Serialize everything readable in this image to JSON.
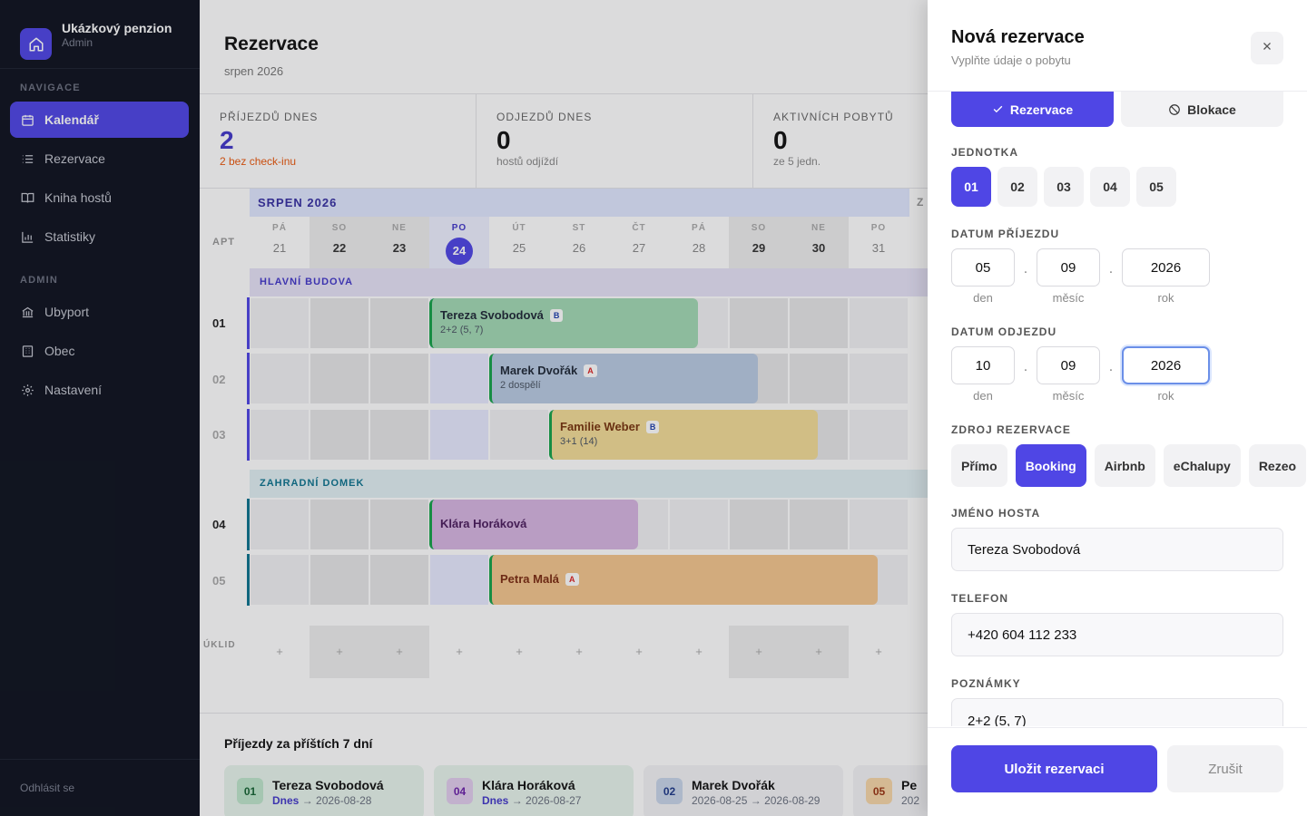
{
  "sidebar": {
    "brand_name": "Ukázkový penzion",
    "brand_role": "Admin",
    "nav_head": "NAVIGACE",
    "admin_head": "ADMIN",
    "items": [
      {
        "label": "Kalendář",
        "icon": "calendar-icon"
      },
      {
        "label": "Rezervace",
        "icon": "list-icon"
      },
      {
        "label": "Kniha hostů",
        "icon": "book-icon"
      },
      {
        "label": "Statistiky",
        "icon": "chart-icon"
      }
    ],
    "admin_items": [
      {
        "label": "Ubyport",
        "icon": "bank-icon"
      },
      {
        "label": "Obec",
        "icon": "building-icon"
      },
      {
        "label": "Nastavení",
        "icon": "gear-icon"
      }
    ],
    "logout": "Odhlásit se"
  },
  "header": {
    "title": "Rezervace",
    "subtitle": "srpen 2026"
  },
  "stats": [
    {
      "label": "PŘÍJEZDŮ DNES",
      "value": "2",
      "note": "2 bez check-inu"
    },
    {
      "label": "ODJEZDŮ DNES",
      "value": "0",
      "note": "hostů odjíždí"
    },
    {
      "label": "AKTIVNÍCH POBYTŮ",
      "value": "0",
      "note": "ze 5 jedn."
    }
  ],
  "calendar": {
    "month": "SRPEN 2026",
    "next_month_initial": "Z",
    "apt_header": "APT",
    "days": [
      {
        "name": "PÁ",
        "num": "21",
        "type": "wd"
      },
      {
        "name": "SO",
        "num": "22",
        "type": "we"
      },
      {
        "name": "NE",
        "num": "23",
        "type": "we"
      },
      {
        "name": "PO",
        "num": "24",
        "type": "today"
      },
      {
        "name": "ÚT",
        "num": "25",
        "type": "wd"
      },
      {
        "name": "ST",
        "num": "26",
        "type": "wd"
      },
      {
        "name": "ČT",
        "num": "27",
        "type": "wd"
      },
      {
        "name": "PÁ",
        "num": "28",
        "type": "wd"
      },
      {
        "name": "SO",
        "num": "29",
        "type": "we"
      },
      {
        "name": "NE",
        "num": "30",
        "type": "we"
      },
      {
        "name": "PO",
        "num": "31",
        "type": "wd"
      }
    ],
    "groups": [
      "HLAVNÍ BUDOVA",
      "ZAHRADNÍ DOMEK"
    ],
    "rows": [
      "01",
      "02",
      "03",
      "04",
      "05"
    ],
    "bookings": [
      {
        "name": "Tereza Svobodová",
        "badge": "B",
        "sub": "2+2 (5, 7)",
        "color": "#a3d9b4"
      },
      {
        "name": "Marek Dvořák",
        "badge": "A",
        "sub": "2 dospělí",
        "color": "#b9cbe3"
      },
      {
        "name": "Familie Weber",
        "badge": "B",
        "sub": "3+1 (14)",
        "color": "#f4dd98"
      },
      {
        "name": "Klára Horáková",
        "badge": "",
        "sub": "",
        "color": "#d7b6e2"
      },
      {
        "name": "Petra Malá",
        "badge": "A",
        "sub": "",
        "color": "#f5c68e"
      }
    ],
    "cleaning_label": "ÚKLID",
    "plus": "+"
  },
  "arrivals": {
    "title": "Příjezdy za příštích 7 dní",
    "cards": [
      {
        "num": "01",
        "name": "Tereza Svobodová",
        "from": "Dnes",
        "arrow": "→",
        "to": "2026-08-28",
        "bg": "#e8f5ec",
        "numbg": "#bfe6cc",
        "numcolor": "#166534"
      },
      {
        "num": "04",
        "name": "Klára Horáková",
        "from": "Dnes",
        "arrow": "→",
        "to": "2026-08-27",
        "bg": "#e8f5ec",
        "numbg": "#e2cdee",
        "numcolor": "#6b21a8"
      },
      {
        "num": "02",
        "name": "Marek Dvořák",
        "from": "2026-08-25",
        "arrow": "→",
        "to": "2026-08-29",
        "bg": "#f4f4f6",
        "numbg": "#c9d6ea",
        "numcolor": "#1e3a8a"
      },
      {
        "num": "05",
        "name": "Pe",
        "from": "202",
        "arrow": "",
        "to": "",
        "bg": "#f4f4f6",
        "numbg": "#f7d7a8",
        "numcolor": "#9a3412"
      }
    ]
  },
  "drawer": {
    "title": "Nová rezervace",
    "subtitle": "Vyplňte údaje o pobytu",
    "type_reservation": "Rezervace",
    "type_block": "Blokace",
    "unit_label": "JEDNOTKA",
    "units": [
      "01",
      "02",
      "03",
      "04",
      "05"
    ],
    "arrival_label": "DATUM PŘÍJEZDU",
    "arrival": {
      "day": "05",
      "month": "09",
      "year": "2026"
    },
    "departure_label": "DATUM ODJEZDU",
    "departure": {
      "day": "10",
      "month": "09",
      "year": "2026"
    },
    "cap_day": "den",
    "cap_month": "měsíc",
    "cap_year": "rok",
    "date_sep": ".",
    "source_label": "ZDROJ REZERVACE",
    "sources": [
      "Přímo",
      "Booking",
      "Airbnb",
      "eChalupy",
      "Rezeo"
    ],
    "guest_label": "JMÉNO HOSTA",
    "guest": "Tereza Svobodová",
    "phone_label": "TELEFON",
    "phone": "+420 604 112 233",
    "notes_label": "POZNÁMKY",
    "notes": "2+2 (5, 7)",
    "save": "Uložit rezervaci",
    "cancel": "Zrušit"
  }
}
